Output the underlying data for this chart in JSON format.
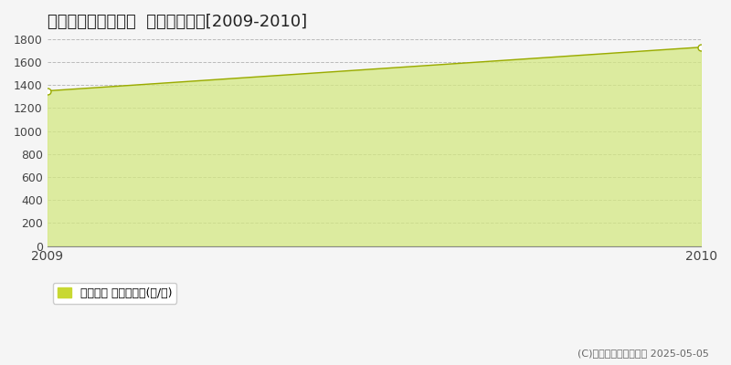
{
  "title": "東置賜郡高畠町竹森  林地価格推移[2009-2010]",
  "x": [
    2009,
    2010
  ],
  "y": [
    1350,
    1730
  ],
  "ylim": [
    0,
    1800
  ],
  "yticks": [
    0,
    200,
    400,
    600,
    800,
    1000,
    1200,
    1400,
    1600,
    1800
  ],
  "xlim": [
    2009,
    2010
  ],
  "xticks": [
    2009,
    2010
  ],
  "line_color": "#9aaa00",
  "fill_color": "#d4e882",
  "fill_alpha": 0.75,
  "marker_color": "#9aaa00",
  "grid_color": "#bbbbbb",
  "bg_color": "#f5f5f5",
  "plot_bg_color": "#f5f5f5",
  "title_fontsize": 13,
  "legend_label": "林地価格 平均坪単価(円/坪)",
  "copyright_text": "(C)土地価格ドットコム 2025-05-05",
  "legend_square_color": "#c8d832"
}
